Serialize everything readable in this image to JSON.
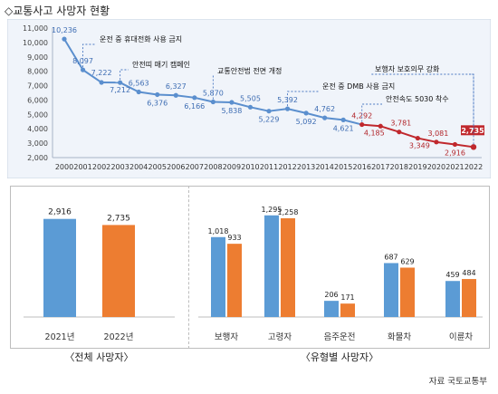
{
  "page": {
    "title": "◇교통사고 사망자 현황",
    "caption_total": "〈전체 사망자〉",
    "caption_type": "〈유형별 사망자〉",
    "source": "자료 국토교통부"
  },
  "colors": {
    "line_blue": "#5b8fce",
    "line_red": "#c0282d",
    "panel_bg": "#f0f4fa",
    "callout_line": "#4a78c2",
    "bar_2021": "#5b9bd5",
    "bar_2022": "#ed7d31",
    "highlight_label_bg": "#c0282d"
  },
  "chart_data": [
    {
      "type": "line",
      "x": [
        "2000",
        "2001",
        "2002",
        "2003",
        "2004",
        "2005",
        "2006",
        "2007",
        "2008",
        "2009",
        "2010",
        "2011",
        "2012",
        "2013",
        "2014",
        "2015",
        "2016",
        "2017",
        "2018",
        "2019",
        "2020",
        "2021",
        "2022"
      ],
      "values": [
        10236,
        8097,
        7222,
        7212,
        6563,
        6376,
        6327,
        6166,
        5870,
        5838,
        5505,
        5229,
        5392,
        5092,
        4762,
        4621,
        4292,
        4185,
        3781,
        3349,
        3081,
        2916,
        2735
      ],
      "data_labels": [
        "10,236",
        "8,097",
        "7,222",
        "7,212",
        "6,563",
        "6,376",
        "6,327",
        "6,166",
        "5,870",
        "5,838",
        "5,505",
        "5,229",
        "5,392",
        "5,092",
        "4,762",
        "4,621",
        "4,292",
        "4,185",
        "3,781",
        "3,349",
        "3,081",
        "2,916",
        "2,735"
      ],
      "ylim": [
        2000,
        11000
      ],
      "yticks": [
        "2,000",
        "3,000",
        "4,000",
        "5,000",
        "6,000",
        "7,000",
        "8,000",
        "9,000",
        "10,000",
        "11,000"
      ],
      "grid": false,
      "red_segment_from_year": "2016",
      "highlighted_point": "2022",
      "annotations": [
        {
          "text": "운전 중 휴대전화 사용 금지",
          "year": "2001"
        },
        {
          "text": "안전띠 매기 캠페인",
          "year": "2003"
        },
        {
          "text": "교통안전법 전면 개정",
          "year": "2008"
        },
        {
          "text": "운전 중 DMB 사용 금지",
          "year": "2012"
        },
        {
          "text": "안전속도 5030 착수",
          "year": "2016"
        },
        {
          "text": "보행자 보호의무 강화",
          "year": "2022"
        }
      ]
    },
    {
      "type": "bar",
      "categories": [
        "2021년",
        "2022년"
      ],
      "values": [
        2916,
        2735
      ],
      "data_labels": [
        "2,916",
        "2,735"
      ]
    },
    {
      "type": "bar",
      "categories": [
        "보행자",
        "고령자",
        "음주운전",
        "화물차",
        "이륜차"
      ],
      "series": [
        {
          "values": [
            1018,
            1295,
            206,
            687,
            459
          ],
          "data_labels": [
            "1,018",
            "1,295",
            "206",
            "687",
            "459"
          ]
        },
        {
          "values": [
            933,
            1258,
            171,
            629,
            484
          ],
          "data_labels": [
            "933",
            "1,258",
            "171",
            "629",
            "484"
          ]
        }
      ]
    }
  ]
}
